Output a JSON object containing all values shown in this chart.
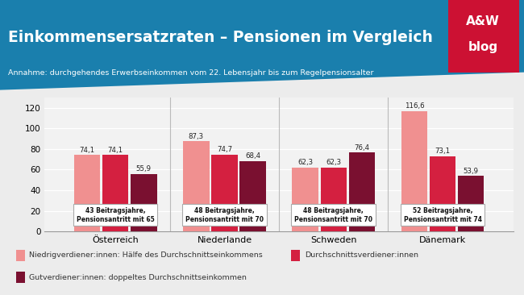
{
  "title": "Einkommensersatzraten – Pensionen im Vergleich",
  "subtitle": "Annahme: durchgehendes Erwerbseinkommen vom 22. Lebensjahr bis zum Regelpensionsalter",
  "header_bg": "#1a7fad",
  "aw_bg": "#cc1133",
  "categories": [
    "Österreich",
    "Niederlande",
    "Schweden",
    "Dänemark"
  ],
  "box_labels": [
    "43 Beitragsjahre,\nPensionsantritt mit 65",
    "48 Beitragsjahre,\nPensionsantritt mit 70",
    "48 Beitragsjahre,\nPensionsantritt mit 70",
    "52 Beitragsjahre,\nPensionsantritt mit 74"
  ],
  "series": {
    "niedrig": [
      74.1,
      87.3,
      62.3,
      116.6
    ],
    "durchschnitt": [
      74.1,
      74.7,
      62.3,
      73.1
    ],
    "gut": [
      55.9,
      68.4,
      76.4,
      53.9
    ]
  },
  "colors": {
    "niedrig": "#f09090",
    "durchschnitt": "#d42040",
    "gut": "#7a1030"
  },
  "legend_labels": [
    "Niedrigverdiener:innen: Hälfe des Durchschnittseinkommens",
    "Durchschnittsverdiener:innen",
    "Gutverdiener:innen: doppeltes Durchschnittseinkommen"
  ],
  "ylim": [
    0,
    130
  ],
  "yticks": [
    0,
    20,
    40,
    60,
    80,
    100,
    120
  ],
  "bg_chart": "#f2f2f2",
  "bg_figure": "#ececec"
}
